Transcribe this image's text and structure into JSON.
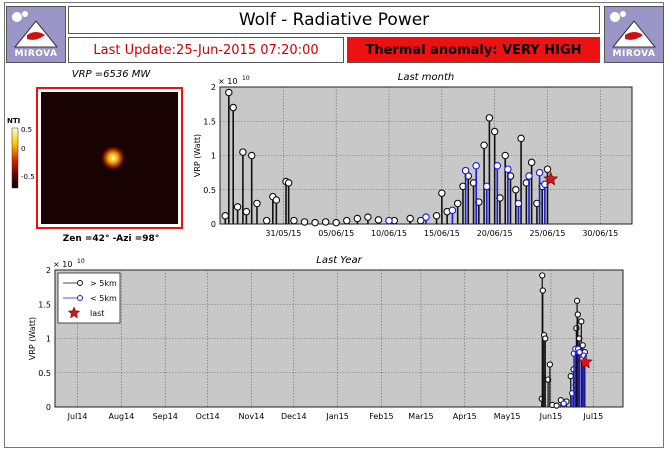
{
  "header": {
    "title": "Wolf - Radiative Power",
    "last_update": "Last Update:25-Jun-2015 07:20:00",
    "alert": "Thermal anomaly:  VERY HIGH",
    "logo_text": "MIROVA",
    "alert_color": "#ee1111"
  },
  "thumbnail": {
    "title": "VRP =6536 MW",
    "footer": "Zen =42° -Azi =98°",
    "colorbar_label": "NTI",
    "colorbar_ticks": [
      "0.5",
      "0",
      "-0.5"
    ]
  },
  "chart_data": [
    {
      "type": "scatter",
      "title": "Last month",
      "ylabel": "VRP (Watt)",
      "exponent": "× 10",
      "exponent_power": "10",
      "ylim": [
        0,
        2
      ],
      "yticks": [
        "0",
        "0.5",
        "1",
        "1.5",
        "2"
      ],
      "xlim": [
        "2015-05-25",
        "2015-07-03"
      ],
      "xticks": [
        "31/05/15",
        "05/06/15",
        "10/06/15",
        "15/06/15",
        "20/06/15",
        "25/06/15",
        "30/06/15"
      ],
      "xtick_dates": [
        "2015-05-31",
        "2015-06-05",
        "2015-06-10",
        "2015-06-15",
        "2015-06-20",
        "2015-06-25",
        "2015-06-30"
      ],
      "grid": true,
      "series": [
        {
          "color": "#101010",
          "points": [
            [
              "2015-05-25T12:00",
              0.12
            ],
            [
              "2015-05-25T20:00",
              1.92
            ],
            [
              "2015-05-26T06:00",
              1.7
            ],
            [
              "2015-05-26T16:00",
              0.25
            ],
            [
              "2015-05-27T04:00",
              1.05
            ],
            [
              "2015-05-27T12:00",
              0.18
            ],
            [
              "2015-05-28T00:00",
              1.0
            ],
            [
              "2015-05-28T12:00",
              0.3
            ],
            [
              "2015-05-29T10:00",
              0.05
            ],
            [
              "2015-05-30T00:00",
              0.4
            ],
            [
              "2015-05-30T08:00",
              0.35
            ],
            [
              "2015-05-31T06:00",
              0.62
            ],
            [
              "2015-05-31T12:00",
              0.6
            ],
            [
              "2015-06-01T00:00",
              0.05
            ],
            [
              "2015-06-02T00:00",
              0.03
            ],
            [
              "2015-06-03T00:00",
              0.02
            ],
            [
              "2015-06-04T00:00",
              0.03
            ],
            [
              "2015-06-05T00:00",
              0.02
            ],
            [
              "2015-06-06T00:00",
              0.05
            ],
            [
              "2015-06-07T00:00",
              0.08
            ],
            [
              "2015-06-08T00:00",
              0.1
            ],
            [
              "2015-06-09T00:00",
              0.06
            ],
            [
              "2015-06-10T12:00",
              0.05
            ],
            [
              "2015-06-12T00:00",
              0.08
            ],
            [
              "2015-06-13T00:00",
              0.05
            ],
            [
              "2015-06-14T12:00",
              0.12
            ],
            [
              "2015-06-15T00:00",
              0.45
            ],
            [
              "2015-06-15T12:00",
              0.18
            ],
            [
              "2015-06-16T12:00",
              0.3
            ],
            [
              "2015-06-17T00:00",
              0.55
            ],
            [
              "2015-06-17T12:00",
              0.7
            ],
            [
              "2015-06-18T00:00",
              0.6
            ],
            [
              "2015-06-18T12:00",
              0.32
            ],
            [
              "2015-06-19T00:00",
              1.15
            ],
            [
              "2015-06-19T12:00",
              1.55
            ],
            [
              "2015-06-20T00:00",
              1.35
            ],
            [
              "2015-06-20T12:00",
              0.38
            ],
            [
              "2015-06-21T00:00",
              1.0
            ],
            [
              "2015-06-21T12:00",
              0.7
            ],
            [
              "2015-06-22T00:00",
              0.5
            ],
            [
              "2015-06-22T12:00",
              1.25
            ],
            [
              "2015-06-23T00:00",
              0.6
            ],
            [
              "2015-06-23T12:00",
              0.9
            ],
            [
              "2015-06-24T00:00",
              0.3
            ],
            [
              "2015-06-24T12:00",
              0.55
            ],
            [
              "2015-06-25T00:00",
              0.8
            ]
          ]
        },
        {
          "color": "#1a1add",
          "points": [
            [
              "2015-06-10T00:00",
              0.05
            ],
            [
              "2015-06-13T12:00",
              0.1
            ],
            [
              "2015-06-16T00:00",
              0.2
            ],
            [
              "2015-06-17T06:00",
              0.78
            ],
            [
              "2015-06-18T06:00",
              0.85
            ],
            [
              "2015-06-19T06:00",
              0.55
            ],
            [
              "2015-06-20T06:00",
              0.85
            ],
            [
              "2015-06-21T06:00",
              0.8
            ],
            [
              "2015-06-22T06:00",
              0.3
            ],
            [
              "2015-06-23T06:00",
              0.7
            ],
            [
              "2015-06-24T06:00",
              0.75
            ],
            [
              "2015-06-24T18:00",
              0.58
            ]
          ]
        }
      ],
      "last": [
        "2015-06-25T07:20",
        0.654
      ]
    },
    {
      "type": "scatter",
      "title": "Last Year",
      "ylabel": "VRP (Watt)",
      "exponent": "× 10",
      "exponent_power": "10",
      "ylim": [
        0,
        2
      ],
      "yticks": [
        "0",
        "0.5",
        "1",
        "1.5",
        "2"
      ],
      "xlim": [
        "2014-06-15",
        "2015-07-22"
      ],
      "xticks": [
        "Jul14",
        "Aug14",
        "Sep14",
        "Oct14",
        "Nov14",
        "Dec14",
        "Jan15",
        "Feb15",
        "Mar15",
        "Apr15",
        "May15",
        "Jun15",
        "Jul15"
      ],
      "xtick_dates": [
        "2014-07-01",
        "2014-08-01",
        "2014-09-01",
        "2014-10-01",
        "2014-11-01",
        "2014-12-01",
        "2015-01-01",
        "2015-02-01",
        "2015-03-01",
        "2015-04-01",
        "2015-05-01",
        "2015-06-01",
        "2015-07-01"
      ],
      "grid": true,
      "legend": {
        "position": "top-left",
        "entries": [
          {
            "label": "> 5km",
            "marker": "circle",
            "color": "#101010"
          },
          {
            "label": "< 5km",
            "marker": "circle",
            "color": "#1a1add"
          },
          {
            "label": "last",
            "marker": "star",
            "color": "#dd1111"
          }
        ]
      },
      "series": [
        {
          "color": "#101010",
          "points": [
            [
              "2015-05-25T12:00",
              0.12
            ],
            [
              "2015-05-25T20:00",
              1.92
            ],
            [
              "2015-05-26T06:00",
              1.7
            ],
            [
              "2015-05-27T04:00",
              1.05
            ],
            [
              "2015-05-28T00:00",
              1.0
            ],
            [
              "2015-05-30T00:00",
              0.4
            ],
            [
              "2015-05-31T06:00",
              0.62
            ],
            [
              "2015-06-02T00:00",
              0.03
            ],
            [
              "2015-06-05T00:00",
              0.02
            ],
            [
              "2015-06-08T00:00",
              0.1
            ],
            [
              "2015-06-12T00:00",
              0.08
            ],
            [
              "2015-06-15T00:00",
              0.45
            ],
            [
              "2015-06-17T00:00",
              0.55
            ],
            [
              "2015-06-18T12:00",
              0.32
            ],
            [
              "2015-06-19T00:00",
              1.15
            ],
            [
              "2015-06-19T12:00",
              1.55
            ],
            [
              "2015-06-20T00:00",
              1.35
            ],
            [
              "2015-06-21T00:00",
              1.0
            ],
            [
              "2015-06-22T12:00",
              1.25
            ],
            [
              "2015-06-23T12:00",
              0.9
            ],
            [
              "2015-06-25T00:00",
              0.8
            ]
          ]
        },
        {
          "color": "#1a1add",
          "points": [
            [
              "2015-06-10T00:00",
              0.05
            ],
            [
              "2015-06-16T00:00",
              0.2
            ],
            [
              "2015-06-17T06:00",
              0.78
            ],
            [
              "2015-06-18T06:00",
              0.85
            ],
            [
              "2015-06-20T06:00",
              0.85
            ],
            [
              "2015-06-21T06:00",
              0.8
            ],
            [
              "2015-06-23T06:00",
              0.7
            ],
            [
              "2015-06-24T06:00",
              0.75
            ]
          ]
        }
      ],
      "last": [
        "2015-06-25T07:20",
        0.654
      ]
    }
  ]
}
